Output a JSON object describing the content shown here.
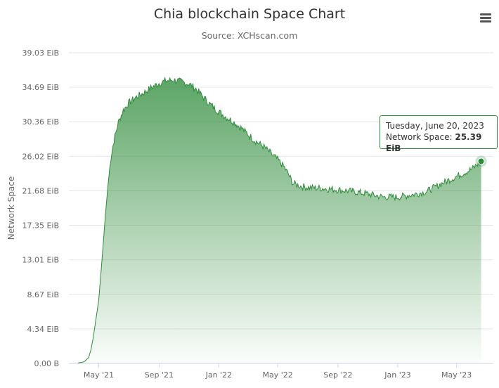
{
  "chart_data": {
    "type": "area",
    "title": "Chia blockchain Space Chart",
    "subtitle": "Source: XCHscan.com",
    "ylabel": "Network Space",
    "xlabel": "",
    "ylim": [
      0,
      39.03
    ],
    "yticks": [
      "0.00 B",
      "4.34 EiB",
      "8.67 EiB",
      "13.01 EiB",
      "17.35 EiB",
      "21.68 EiB",
      "26.02 EiB",
      "30.36 EiB",
      "34.69 EiB",
      "39.03 EiB"
    ],
    "xticks": [
      "May '21",
      "Sep '21",
      "Jan '22",
      "May '22",
      "Sep '22",
      "Jan '23",
      "May '23"
    ],
    "xtick_dates": [
      "2021-05-01",
      "2021-09-01",
      "2022-01-01",
      "2022-05-01",
      "2022-09-01",
      "2023-01-01",
      "2023-05-01"
    ],
    "grid": true,
    "color": "#2e8b3a",
    "series": [
      {
        "name": "Network Space",
        "unit": "EiB",
        "points": [
          [
            "2021-03-19",
            0.05
          ],
          [
            "2021-04-01",
            0.2
          ],
          [
            "2021-04-10",
            0.7
          ],
          [
            "2021-04-15",
            1.7
          ],
          [
            "2021-04-20",
            3.3
          ],
          [
            "2021-04-25",
            5.5
          ],
          [
            "2021-05-01",
            8.0
          ],
          [
            "2021-05-05",
            11.0
          ],
          [
            "2021-05-10",
            15.0
          ],
          [
            "2021-05-15",
            19.0
          ],
          [
            "2021-05-20",
            22.5
          ],
          [
            "2021-05-25",
            25.5
          ],
          [
            "2021-06-01",
            28.0
          ],
          [
            "2021-06-10",
            30.3
          ],
          [
            "2021-06-20",
            31.8
          ],
          [
            "2021-07-01",
            32.7
          ],
          [
            "2021-07-15",
            33.4
          ],
          [
            "2021-08-01",
            34.0
          ],
          [
            "2021-08-15",
            34.6
          ],
          [
            "2021-09-01",
            35.2
          ],
          [
            "2021-09-15",
            35.5
          ],
          [
            "2021-10-01",
            35.6
          ],
          [
            "2021-10-15",
            35.4
          ],
          [
            "2021-11-01",
            35.1
          ],
          [
            "2021-11-15",
            34.5
          ],
          [
            "2021-12-01",
            33.4
          ],
          [
            "2021-12-15",
            32.5
          ],
          [
            "2022-01-01",
            31.6
          ],
          [
            "2022-01-15",
            31.0
          ],
          [
            "2022-02-01",
            30.3
          ],
          [
            "2022-02-15",
            29.6
          ],
          [
            "2022-03-01",
            28.8
          ],
          [
            "2022-03-15",
            28.0
          ],
          [
            "2022-04-01",
            27.3
          ],
          [
            "2022-04-15",
            26.5
          ],
          [
            "2022-05-01",
            25.6
          ],
          [
            "2022-05-15",
            24.6
          ],
          [
            "2022-05-25",
            23.5
          ],
          [
            "2022-06-01",
            22.6
          ],
          [
            "2022-06-15",
            22.3
          ],
          [
            "2022-07-01",
            22.1
          ],
          [
            "2022-08-01",
            22.0
          ],
          [
            "2022-09-01",
            21.8
          ],
          [
            "2022-10-01",
            21.6
          ],
          [
            "2022-11-01",
            21.3
          ],
          [
            "2022-12-01",
            20.9
          ],
          [
            "2023-01-01",
            20.9
          ],
          [
            "2023-02-01",
            21.2
          ],
          [
            "2023-03-01",
            21.6
          ],
          [
            "2023-04-01",
            22.6
          ],
          [
            "2023-05-01",
            23.5
          ],
          [
            "2023-06-01",
            24.4
          ],
          [
            "2023-06-20",
            25.39
          ]
        ]
      }
    ],
    "tooltip": {
      "date": "Tuesday, June 20, 2023",
      "label": "Network Space:",
      "value": "25.39 EiB"
    }
  },
  "menu_icon": "hamburger-menu-icon"
}
